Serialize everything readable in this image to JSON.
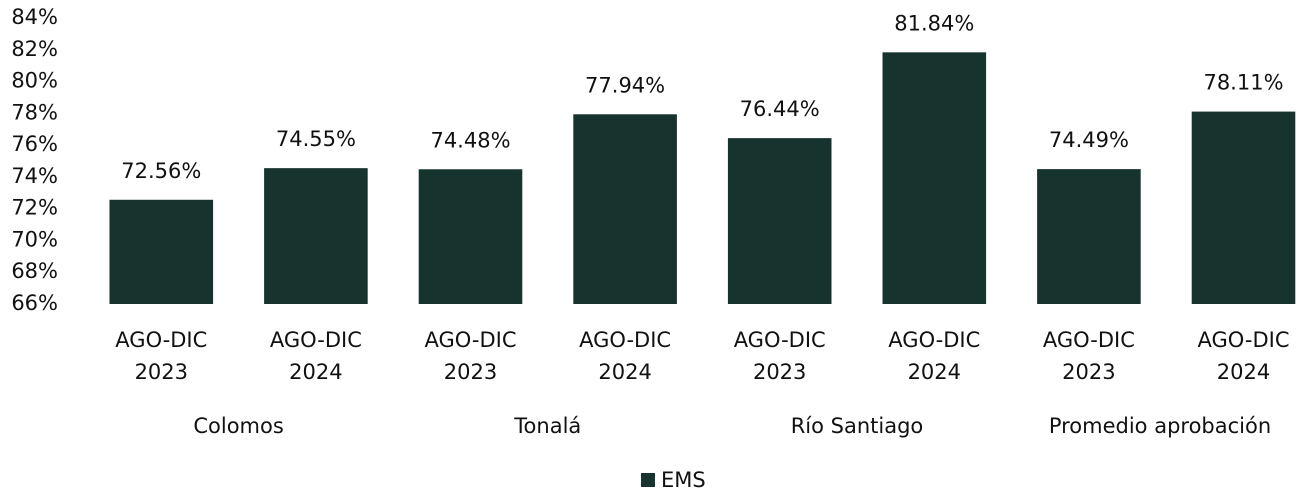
{
  "chart_data": {
    "type": "bar",
    "categories": [
      "AGO-DIC 2023",
      "AGO-DIC 2024",
      "AGO-DIC 2023",
      "AGO-DIC 2024",
      "AGO-DIC 2023",
      "AGO-DIC 2024",
      "AGO-DIC 2023",
      "AGO-DIC 2024"
    ],
    "groups": [
      "Colomos",
      "Tonalá",
      "Río Santiago",
      "Promedio aprobación"
    ],
    "series": [
      {
        "name": "EMS",
        "color": "#17332e",
        "values": [
          72.56,
          74.55,
          74.48,
          77.94,
          76.44,
          81.84,
          74.49,
          78.11
        ],
        "value_labels": [
          "72.56%",
          "74.55%",
          "74.48%",
          "77.94%",
          "76.44%",
          "81.84%",
          "74.49%",
          "78.11%"
        ]
      }
    ],
    "ylim": [
      66,
      84
    ],
    "yticks": [
      {
        "value": 66,
        "label": "66%"
      },
      {
        "value": 68,
        "label": "68%"
      },
      {
        "value": 70,
        "label": "70%"
      },
      {
        "value": 72,
        "label": "72%"
      },
      {
        "value": 74,
        "label": "74%"
      },
      {
        "value": 76,
        "label": "76%"
      },
      {
        "value": 78,
        "label": "78%"
      },
      {
        "value": 80,
        "label": "80%"
      },
      {
        "value": 82,
        "label": "82%"
      },
      {
        "value": 84,
        "label": "84%"
      }
    ],
    "grid": false,
    "legend": "bottom"
  }
}
